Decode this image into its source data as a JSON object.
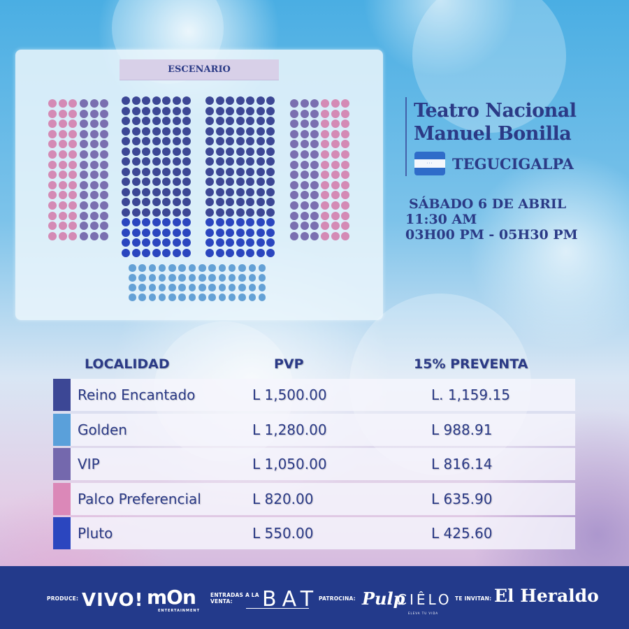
{
  "seating": {
    "stage_label": "ESCENARIO",
    "colors": {
      "reino_encantado": "#3c4795",
      "golden": "#64a1d6",
      "vip": "#7a6fb0",
      "palco_preferencial": "#d48ab5",
      "pluto": "#2b46bf"
    },
    "blocks": [
      {
        "name": "left-palco",
        "section": "Palco Preferencial",
        "rows": 14,
        "cols": 3
      },
      {
        "name": "left-vip",
        "section": "VIP",
        "rows": 14,
        "cols": 3
      },
      {
        "name": "center-left-reino",
        "section": "Reino Encantado",
        "rows": 12,
        "cols": 7
      },
      {
        "name": "center-left-pluto",
        "section": "Pluto",
        "rows": 4,
        "cols": 7
      },
      {
        "name": "center-right-reino",
        "section": "Reino Encantado",
        "rows": 12,
        "cols": 7
      },
      {
        "name": "center-right-pluto",
        "section": "Pluto",
        "rows": 4,
        "cols": 7
      },
      {
        "name": "right-vip",
        "section": "VIP",
        "rows": 14,
        "cols": 3
      },
      {
        "name": "right-palco",
        "section": "Palco Preferencial",
        "rows": 14,
        "cols": 3
      },
      {
        "name": "rear-golden",
        "section": "Golden",
        "rows": 4,
        "cols": 14
      }
    ]
  },
  "venue": {
    "title_line1": "Teatro Nacional",
    "title_line2": "Manuel Bonilla",
    "flag_icon": "honduras-flag-icon",
    "city": "TEGUCIGALPA"
  },
  "schedule": {
    "date": "SÁBADO 6 DE ABRIL",
    "time1": "11:30 AM",
    "time2": "03H00 PM - 05H30 PM"
  },
  "prices": {
    "headers": {
      "locality": "LOCALIDAD",
      "pvp": "PVP",
      "presale": "15% PREVENTA"
    },
    "rows": [
      {
        "name": "Reino Encantado",
        "pvp": "L  1,500.00",
        "presale": "L. 1,159.15",
        "color": "#3c4795"
      },
      {
        "name": "Golden",
        "pvp": "L  1,280.00",
        "presale": "L 988.91",
        "color": "#5aa0da"
      },
      {
        "name": "VIP",
        "pvp": "L  1,050.00",
        "presale": "L 816.14",
        "color": "#7468ad"
      },
      {
        "name": "Palco Preferencial",
        "pvp": "L  820.00",
        "presale": "L 635.90",
        "color": "#db88b8"
      },
      {
        "name": "Pluto",
        "pvp": "L  550.00",
        "presale": "L 425.60",
        "color": "#2b46bf"
      }
    ]
  },
  "footer": {
    "produce_label": "PRODUCE:",
    "produce_logos": [
      "VIVO!",
      "mOn"
    ],
    "mon_subtitle": "ENTERTAINMENT",
    "tickets_label_1": "ENTRADAS A LA",
    "tickets_label_2": "VENTA:",
    "tickets_logo": "BAT",
    "sponsor_label": "PATROCINA:",
    "sponsor_logos": [
      "Pulp",
      "CIÊLO"
    ],
    "cielo_subtitle": "ELEVA TU VIDA",
    "invite_label": "TE INVITAN:",
    "invite_logo": "El Heraldo",
    "background": "#233a8b"
  }
}
